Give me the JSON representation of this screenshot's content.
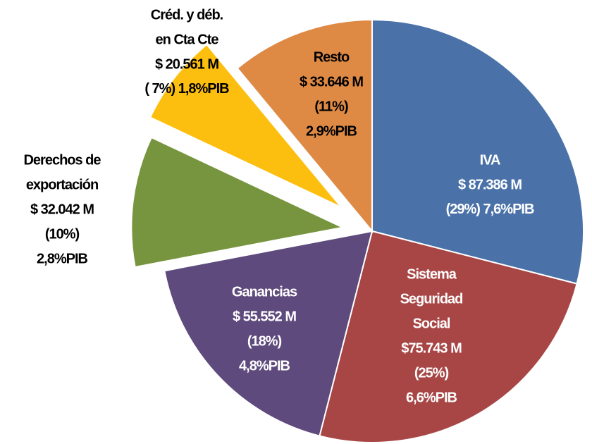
{
  "chart_data": {
    "type": "pie",
    "categories": [
      [
        "IVA"
      ],
      [
        "Sistema",
        "Seguridad",
        "Social"
      ],
      [
        "Ganancias"
      ],
      [
        "Derechos de",
        "exportación"
      ],
      [
        "Créd. y déb.",
        "en Cta Cte"
      ],
      [
        "Resto"
      ]
    ],
    "values": [
      29,
      25,
      18,
      10,
      7,
      11
    ],
    "value_labels": [
      "(29%)",
      "(25%)",
      "(18%)",
      "(10%)",
      "( 7%)",
      "(11%)"
    ],
    "amounts": [
      "$ 87.386 M",
      "$75.743 M",
      "$ 55.552 M",
      "$ 32.042 M",
      "$ 20.561 M",
      "$ 33.646 M"
    ],
    "pib": [
      "7,6%PIB",
      "6,6%PIB",
      "4,8%PIB",
      "2,8%PIB",
      "1,8%PIB",
      "2,9%PIB"
    ],
    "colors": [
      "#4a72a8",
      "#a84545",
      "#5e4a7c",
      "#77953e",
      "#fdbf0f",
      "#de8a45"
    ]
  }
}
